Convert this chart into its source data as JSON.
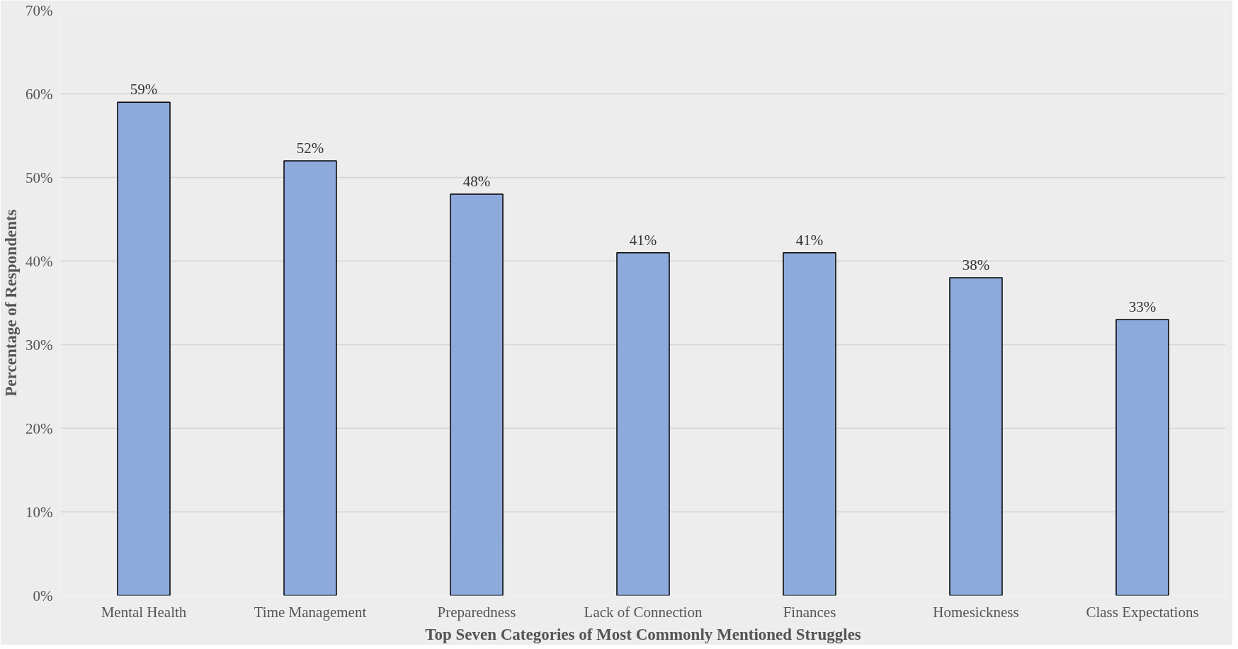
{
  "chart_data": {
    "type": "bar",
    "xlabel": "Top Seven Categories of Most Commonly Mentioned Struggles",
    "ylabel": "Percentage of Respondents",
    "categories": [
      "Mental Health",
      "Time Management",
      "Preparedness",
      "Lack of Connection",
      "Finances",
      "Homesickness",
      "Class Expectations"
    ],
    "values": [
      59,
      52,
      48,
      41,
      41,
      38,
      33
    ],
    "value_labels": [
      "59%",
      "52%",
      "48%",
      "41%",
      "41%",
      "38%",
      "33%"
    ],
    "color": "#8eaadc",
    "ylim": [
      0,
      70
    ],
    "yticks": [
      {
        "value": 0,
        "label": "0%"
      },
      {
        "value": 10,
        "label": "10%"
      },
      {
        "value": 20,
        "label": "20%"
      },
      {
        "value": 30,
        "label": "30%"
      },
      {
        "value": 40,
        "label": "40%"
      },
      {
        "value": 50,
        "label": "50%"
      },
      {
        "value": 60,
        "label": "60%"
      },
      {
        "value": 70,
        "label": "70%"
      }
    ],
    "grid": "y"
  }
}
